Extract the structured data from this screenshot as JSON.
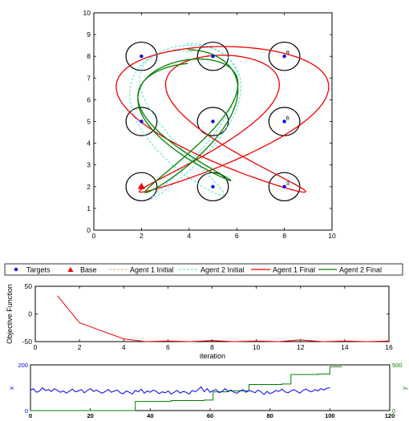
{
  "chart_data": [
    {
      "type": "line",
      "subtype": "trajectory-map",
      "xlim": [
        0,
        10
      ],
      "ylim": [
        0,
        10
      ],
      "xticks": [
        0,
        2,
        4,
        6,
        8,
        10
      ],
      "yticks": [
        0,
        1,
        2,
        3,
        4,
        5,
        6,
        7,
        8,
        9,
        10
      ],
      "grid": false,
      "legend_position": "bottom-outside",
      "colors": {
        "targets": "#0000ee",
        "base": "#ee0000",
        "agent1_initial": "#f4a460",
        "agent2_initial": "#40e0d0",
        "agent1_final": "#ee0000",
        "agent2_final": "#008000",
        "circles": "#000000"
      },
      "target_radius": 0.65,
      "targets": [
        {
          "x": 2,
          "y": 2,
          "label": ""
        },
        {
          "x": 5,
          "y": 2,
          "label": ""
        },
        {
          "x": 8,
          "y": 2,
          "label": "3"
        },
        {
          "x": 2,
          "y": 5,
          "label": ""
        },
        {
          "x": 5,
          "y": 5,
          "label": ""
        },
        {
          "x": 8,
          "y": 5,
          "label": "6"
        },
        {
          "x": 2,
          "y": 8,
          "label": ""
        },
        {
          "x": 5,
          "y": 8,
          "label": ""
        },
        {
          "x": 8,
          "y": 8,
          "label": "9"
        }
      ],
      "base": {
        "x": 2,
        "y": 2
      },
      "series": [
        {
          "name": "Agent 1 Initial",
          "style": "dashed",
          "ax": [
            5.3,
            1.5,
            0.45
          ],
          "ay": [
            3.0,
            0.5,
            1.0
          ],
          "fx": [
            2,
            0.6
          ],
          "fy": [
            2,
            1.5
          ],
          "cx": 5.1,
          "cy": 5.0
        },
        {
          "name": "Agent 2 Initial",
          "style": "dashed",
          "ax": [
            2.0,
            0.5
          ],
          "ay": [
            3.0,
            0.6
          ],
          "fx": [
            3,
            1.1
          ],
          "fy": [
            2,
            2.2
          ],
          "cx": 3.9,
          "cy": 5.0
        },
        {
          "name": "Agent 1 Final",
          "style": "solid",
          "ax": [
            3.4,
            1.2
          ],
          "ay": [
            3.25,
            0.2
          ],
          "fx": [
            3,
            2
          ],
          "fy": [
            2,
            1
          ],
          "cx": 5.4,
          "cy": 5.0
        },
        {
          "name": "Agent 2 Final",
          "style": "solid",
          "ax": [
            2.0,
            0.2
          ],
          "ay": [
            3.0,
            0.35
          ],
          "fx": [
            3,
            1
          ],
          "fy": [
            2,
            2.6
          ],
          "cx": 3.95,
          "cy": 4.95
        }
      ],
      "legend": [
        "Targets",
        "Base",
        "Agent 1 Initial",
        "Agent 2 Initial",
        "Agent 1 Final",
        "Agent 2 Final"
      ]
    },
    {
      "type": "line",
      "xlabel": "iteration",
      "ylabel": "Objective Function",
      "xlim": [
        0,
        16
      ],
      "ylim": [
        -50,
        50
      ],
      "xticks": [
        0,
        2,
        4,
        6,
        8,
        10,
        12,
        14,
        16
      ],
      "yticks": [
        -50,
        0,
        50
      ],
      "color": "#ee0000",
      "x": [
        1,
        2,
        4,
        5,
        6,
        7,
        8,
        9,
        10,
        11,
        12,
        13,
        14,
        15,
        16
      ],
      "y": [
        33,
        -16,
        -45,
        -50,
        -49,
        -50,
        -48,
        -50,
        -49,
        -50,
        -47,
        -50,
        -49,
        -50,
        -49
      ]
    },
    {
      "type": "line",
      "xlim": [
        0,
        120
      ],
      "xticks": [
        0,
        20,
        40,
        60,
        80,
        100,
        120
      ],
      "ylim_left": [
        0,
        200
      ],
      "yticks_left": [
        0,
        200
      ],
      "ylabel_left": "x",
      "color_left": "#0000ee",
      "ylim_right": [
        0,
        500
      ],
      "yticks_right": [
        0,
        500
      ],
      "ylabel_right": "y",
      "color_right": "#008000",
      "series_x_trace": [
        90,
        95,
        80,
        85,
        100,
        88,
        92,
        84,
        96,
        88,
        80,
        86,
        76,
        85,
        94,
        82,
        86,
        92,
        78,
        88,
        96,
        84,
        90,
        82,
        76,
        84,
        92,
        80,
        86,
        90,
        78,
        74,
        86,
        80,
        72,
        88,
        82,
        94,
        76,
        86,
        80,
        90,
        84,
        74,
        82,
        78,
        86,
        72,
        80,
        88,
        76,
        84,
        80,
        72,
        88,
        82,
        92,
        104,
        82,
        96,
        80,
        88,
        92,
        78,
        84,
        96,
        84,
        90,
        80,
        76,
        86,
        92,
        80,
        88,
        84,
        78,
        90,
        82,
        70,
        84,
        74,
        80,
        88,
        84,
        94,
        82,
        78,
        86,
        92,
        84,
        76,
        88,
        94,
        86,
        82,
        92,
        86,
        96,
        90,
        98,
        100
      ],
      "series_y_trace": [
        {
          "x": 0,
          "y": 0
        },
        {
          "x": 31,
          "y": 0
        },
        {
          "x": 35,
          "y": 100
        },
        {
          "x": 47,
          "y": 110
        },
        {
          "x": 58,
          "y": 115
        },
        {
          "x": 61,
          "y": 205
        },
        {
          "x": 66,
          "y": 215
        },
        {
          "x": 73,
          "y": 285
        },
        {
          "x": 84,
          "y": 290
        },
        {
          "x": 87,
          "y": 395
        },
        {
          "x": 96,
          "y": 400
        },
        {
          "x": 100,
          "y": 480
        },
        {
          "x": 104,
          "y": 480
        }
      ]
    }
  ]
}
